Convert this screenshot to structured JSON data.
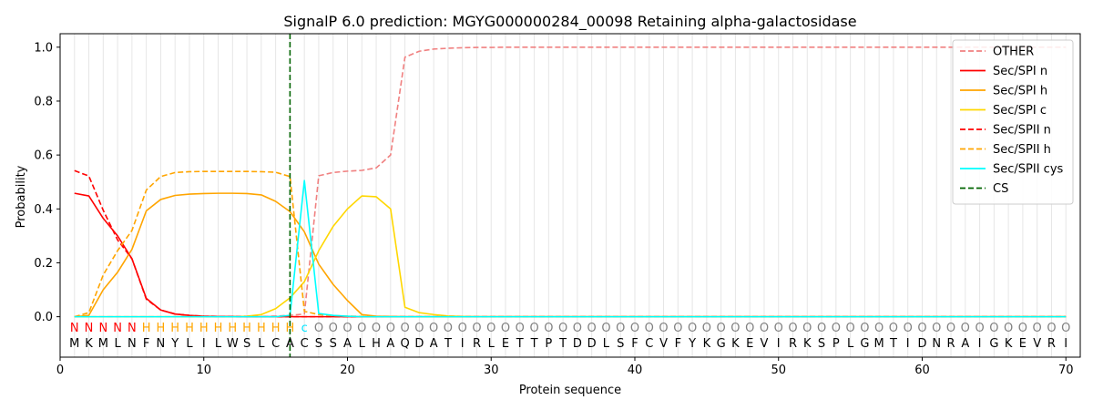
{
  "chart_data": {
    "type": "line",
    "title": "SignalP 6.0 prediction: MGYG000000284_00098 Retaining alpha-galactosidase",
    "xlabel": "Protein sequence",
    "ylabel": "Probability",
    "xlim": [
      0,
      71
    ],
    "ylim": [
      -0.15,
      1.05
    ],
    "xticks": [
      0,
      10,
      20,
      30,
      40,
      50,
      60,
      70
    ],
    "yticks": [
      0.0,
      0.2,
      0.4,
      0.6,
      0.8,
      1.0
    ],
    "vertical_grid": true,
    "legend_position": "top-right",
    "sequence": [
      "M",
      "K",
      "M",
      "L",
      "N",
      "F",
      "N",
      "Y",
      "L",
      "I",
      "L",
      "W",
      "S",
      "L",
      "C",
      "A",
      "C",
      "S",
      "S",
      "A",
      "L",
      "H",
      "A",
      "Q",
      "D",
      "A",
      "T",
      "I",
      "R",
      "L",
      "E",
      "T",
      "T",
      "P",
      "T",
      "D",
      "D",
      "L",
      "S",
      "F",
      "C",
      "V",
      "F",
      "Y",
      "K",
      "G",
      "K",
      "E",
      "V",
      "I",
      "R",
      "K",
      "S",
      "P",
      "L",
      "G",
      "M",
      "T",
      "I",
      "D",
      "N",
      "R",
      "A",
      "I",
      "G",
      "K",
      "E",
      "V",
      "R",
      "I"
    ],
    "annotation": [
      "N",
      "N",
      "N",
      "N",
      "N",
      "H",
      "H",
      "H",
      "H",
      "H",
      "H",
      "H",
      "H",
      "H",
      "H",
      "H",
      "c",
      "O",
      "O",
      "O",
      "O",
      "O",
      "O",
      "O",
      "O",
      "O",
      "O",
      "O",
      "O",
      "O",
      "O",
      "O",
      "O",
      "O",
      "O",
      "O",
      "O",
      "O",
      "O",
      "O",
      "O",
      "O",
      "O",
      "O",
      "O",
      "O",
      "O",
      "O",
      "O",
      "O",
      "O",
      "O",
      "O",
      "O",
      "O",
      "O",
      "O",
      "O",
      "O",
      "O",
      "O",
      "O",
      "O",
      "O",
      "O",
      "O",
      "O",
      "O",
      "O",
      "O"
    ],
    "annotation_colors": {
      "N": "#ff0000",
      "H": "#ffa500",
      "c": "#00e5ff",
      "O": "#808080"
    },
    "cs_position": 16,
    "cs_color": "#006400",
    "series": [
      {
        "name": "OTHER",
        "color": "#f08080",
        "dash": true,
        "values": [
          0.0,
          0.0,
          0.0,
          0.0,
          0.0,
          0.0,
          0.0,
          0.0,
          0.0,
          0.0,
          0.0,
          0.0,
          0.0,
          0.0,
          0.002,
          0.005,
          0.01,
          0.523,
          0.535,
          0.54,
          0.543,
          0.552,
          0.6,
          0.963,
          0.985,
          0.993,
          0.996,
          0.998,
          0.999,
          0.999,
          1.0,
          1.0,
          1.0,
          1.0,
          1.0,
          1.0,
          1.0,
          1.0,
          1.0,
          1.0,
          1.0,
          1.0,
          1.0,
          1.0,
          1.0,
          1.0,
          1.0,
          1.0,
          1.0,
          1.0,
          1.0,
          1.0,
          1.0,
          1.0,
          1.0,
          1.0,
          1.0,
          1.0,
          1.0,
          1.0,
          1.0,
          1.0,
          1.0,
          1.0,
          1.0,
          1.0,
          1.0,
          1.0,
          1.0,
          1.0
        ]
      },
      {
        "name": "Sec/SPI n",
        "color": "#ff0000",
        "dash": false,
        "values": [
          0.458,
          0.448,
          0.365,
          0.3,
          0.215,
          0.068,
          0.025,
          0.01,
          0.005,
          0.002,
          0.001,
          0.001,
          0.0,
          0.0,
          0.0,
          0.0,
          0.0,
          0.0,
          0.0,
          0.0,
          0.0,
          0.0,
          0.0,
          0.0,
          0.0,
          0.0,
          0.0,
          0.0,
          0.0,
          0.0,
          0.0,
          0.0,
          0.0,
          0.0,
          0.0,
          0.0,
          0.0,
          0.0,
          0.0,
          0.0,
          0.0,
          0.0,
          0.0,
          0.0,
          0.0,
          0.0,
          0.0,
          0.0,
          0.0,
          0.0,
          0.0,
          0.0,
          0.0,
          0.0,
          0.0,
          0.0,
          0.0,
          0.0,
          0.0,
          0.0,
          0.0,
          0.0,
          0.0,
          0.0,
          0.0,
          0.0,
          0.0,
          0.0,
          0.0,
          0.0
        ]
      },
      {
        "name": "Sec/SPI h",
        "color": "#ffa500",
        "dash": false,
        "values": [
          0.0,
          0.005,
          0.1,
          0.165,
          0.25,
          0.393,
          0.435,
          0.45,
          0.455,
          0.457,
          0.458,
          0.458,
          0.457,
          0.452,
          0.428,
          0.39,
          0.315,
          0.195,
          0.12,
          0.06,
          0.008,
          0.002,
          0.001,
          0.0,
          0.0,
          0.0,
          0.0,
          0.0,
          0.0,
          0.0,
          0.0,
          0.0,
          0.0,
          0.0,
          0.0,
          0.0,
          0.0,
          0.0,
          0.0,
          0.0,
          0.0,
          0.0,
          0.0,
          0.0,
          0.0,
          0.0,
          0.0,
          0.0,
          0.0,
          0.0,
          0.0,
          0.0,
          0.0,
          0.0,
          0.0,
          0.0,
          0.0,
          0.0,
          0.0,
          0.0,
          0.0,
          0.0,
          0.0,
          0.0,
          0.0,
          0.0,
          0.0,
          0.0,
          0.0,
          0.0
        ]
      },
      {
        "name": "Sec/SPI c",
        "color": "#ffd700",
        "dash": false,
        "values": [
          0.0,
          0.0,
          0.0,
          0.0,
          0.0,
          0.0,
          0.0,
          0.0,
          0.0,
          0.0,
          0.0,
          0.0,
          0.002,
          0.008,
          0.03,
          0.07,
          0.13,
          0.245,
          0.335,
          0.4,
          0.448,
          0.445,
          0.4,
          0.035,
          0.015,
          0.008,
          0.003,
          0.001,
          0.0,
          0.0,
          0.0,
          0.0,
          0.0,
          0.0,
          0.0,
          0.0,
          0.0,
          0.0,
          0.0,
          0.0,
          0.0,
          0.0,
          0.0,
          0.0,
          0.0,
          0.0,
          0.0,
          0.0,
          0.0,
          0.0,
          0.0,
          0.0,
          0.0,
          0.0,
          0.0,
          0.0,
          0.0,
          0.0,
          0.0,
          0.0,
          0.0,
          0.0,
          0.0,
          0.0,
          0.0,
          0.0,
          0.0,
          0.0,
          0.0,
          0.0
        ]
      },
      {
        "name": "Sec/SPII n",
        "color": "#ff0000",
        "dash": true,
        "values": [
          0.542,
          0.522,
          0.395,
          0.285,
          0.215,
          0.065,
          0.025,
          0.01,
          0.005,
          0.002,
          0.001,
          0.001,
          0.0,
          0.0,
          0.0,
          0.0,
          0.0,
          0.0,
          0.0,
          0.0,
          0.0,
          0.0,
          0.0,
          0.0,
          0.0,
          0.0,
          0.0,
          0.0,
          0.0,
          0.0,
          0.0,
          0.0,
          0.0,
          0.0,
          0.0,
          0.0,
          0.0,
          0.0,
          0.0,
          0.0,
          0.0,
          0.0,
          0.0,
          0.0,
          0.0,
          0.0,
          0.0,
          0.0,
          0.0,
          0.0,
          0.0,
          0.0,
          0.0,
          0.0,
          0.0,
          0.0,
          0.0,
          0.0,
          0.0,
          0.0,
          0.0,
          0.0,
          0.0,
          0.0,
          0.0,
          0.0,
          0.0,
          0.0,
          0.0,
          0.0
        ]
      },
      {
        "name": "Sec/SPII h",
        "color": "#ffa500",
        "dash": true,
        "values": [
          0.0,
          0.015,
          0.155,
          0.245,
          0.32,
          0.47,
          0.52,
          0.535,
          0.538,
          0.539,
          0.539,
          0.539,
          0.539,
          0.538,
          0.536,
          0.52,
          0.02,
          0.008,
          0.004,
          0.002,
          0.001,
          0.0,
          0.0,
          0.0,
          0.0,
          0.0,
          0.0,
          0.0,
          0.0,
          0.0,
          0.0,
          0.0,
          0.0,
          0.0,
          0.0,
          0.0,
          0.0,
          0.0,
          0.0,
          0.0,
          0.0,
          0.0,
          0.0,
          0.0,
          0.0,
          0.0,
          0.0,
          0.0,
          0.0,
          0.0,
          0.0,
          0.0,
          0.0,
          0.0,
          0.0,
          0.0,
          0.0,
          0.0,
          0.0,
          0.0,
          0.0,
          0.0,
          0.0,
          0.0,
          0.0,
          0.0,
          0.0,
          0.0,
          0.0,
          0.0
        ]
      },
      {
        "name": "Sec/SPII cys",
        "color": "#00ffff",
        "dash": false,
        "values": [
          0.0,
          0.0,
          0.0,
          0.0,
          0.0,
          0.0,
          0.0,
          0.0,
          0.0,
          0.0,
          0.0,
          0.0,
          0.0,
          0.0,
          0.0,
          0.005,
          0.505,
          0.012,
          0.005,
          0.002,
          0.0,
          0.0,
          0.0,
          0.0,
          0.0,
          0.0,
          0.0,
          0.0,
          0.0,
          0.0,
          0.0,
          0.0,
          0.0,
          0.0,
          0.0,
          0.0,
          0.0,
          0.0,
          0.0,
          0.0,
          0.0,
          0.0,
          0.0,
          0.0,
          0.0,
          0.0,
          0.0,
          0.0,
          0.0,
          0.0,
          0.0,
          0.0,
          0.0,
          0.0,
          0.0,
          0.0,
          0.0,
          0.0,
          0.0,
          0.0,
          0.0,
          0.0,
          0.0,
          0.0,
          0.0,
          0.0,
          0.0,
          0.0,
          0.0,
          0.0
        ]
      }
    ],
    "legend": [
      {
        "label": "OTHER",
        "color": "#f08080",
        "dash": true
      },
      {
        "label": "Sec/SPI n",
        "color": "#ff0000",
        "dash": false
      },
      {
        "label": "Sec/SPI h",
        "color": "#ffa500",
        "dash": false
      },
      {
        "label": "Sec/SPI c",
        "color": "#ffd700",
        "dash": false
      },
      {
        "label": "Sec/SPII n",
        "color": "#ff0000",
        "dash": true
      },
      {
        "label": "Sec/SPII h",
        "color": "#ffa500",
        "dash": true
      },
      {
        "label": "Sec/SPII cys",
        "color": "#00ffff",
        "dash": false
      },
      {
        "label": "CS",
        "color": "#006400",
        "dash": true
      }
    ]
  }
}
